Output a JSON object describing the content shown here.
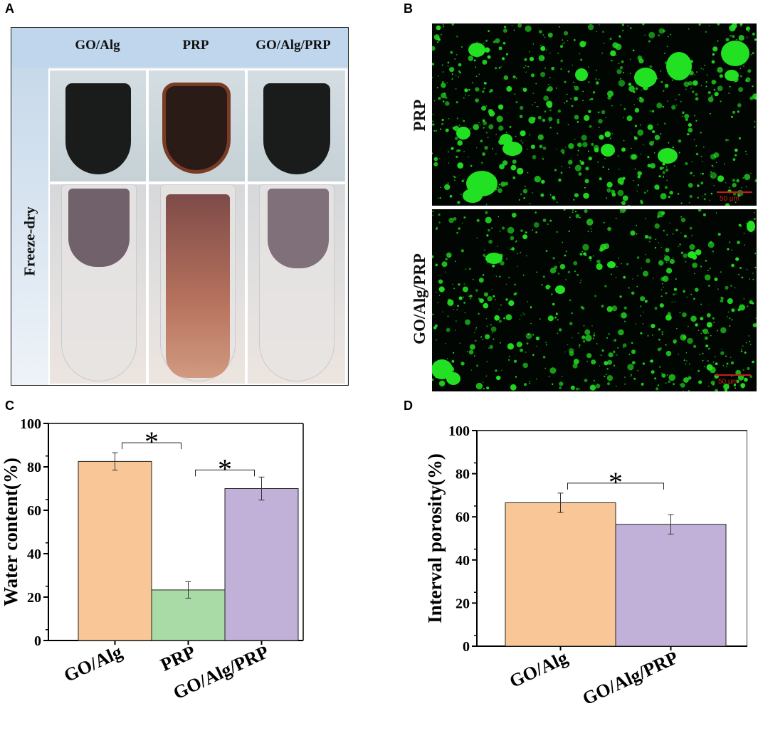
{
  "panel_letters": {
    "a": "A",
    "b": "B",
    "c": "C",
    "d": "D"
  },
  "panel_a": {
    "columns": [
      "GO/Alg",
      "PRP",
      "GO/Alg/PRP"
    ],
    "row_label": "Freeze-dry"
  },
  "panel_b": {
    "rows": [
      "PRP",
      "GO/Alg/PRP"
    ],
    "scale_label": "50 μm",
    "fluor_color": "#22e022"
  },
  "chart_data": [
    {
      "type": "bar",
      "panel": "C",
      "categories": [
        "GO/Alg",
        "PRP",
        "GO/Alg/PRP"
      ],
      "values": [
        82.5,
        23.3,
        70.0
      ],
      "errors": [
        4.0,
        3.8,
        5.3
      ],
      "colors": [
        "#f9c797",
        "#a8dba6",
        "#c1b1d8"
      ],
      "ylabel": "Water content(%)",
      "xlabel": "",
      "ylim": [
        0,
        100
      ],
      "yticks": [
        0,
        20,
        40,
        60,
        80,
        100
      ],
      "significance": [
        {
          "from": 0,
          "to": 1,
          "label": "*"
        },
        {
          "from": 1,
          "to": 2,
          "label": "*"
        }
      ]
    },
    {
      "type": "bar",
      "panel": "D",
      "categories": [
        "GO/Alg",
        "GO/Alg/PRP"
      ],
      "values": [
        66.5,
        56.5
      ],
      "errors": [
        4.5,
        4.5
      ],
      "colors": [
        "#f9c797",
        "#c1b1d8"
      ],
      "ylabel": "Interval porosity(%)",
      "xlabel": "",
      "ylim": [
        0,
        100
      ],
      "yticks": [
        0,
        20,
        40,
        60,
        80,
        100
      ],
      "significance": [
        {
          "from": 0,
          "to": 1,
          "label": "*"
        }
      ]
    }
  ]
}
